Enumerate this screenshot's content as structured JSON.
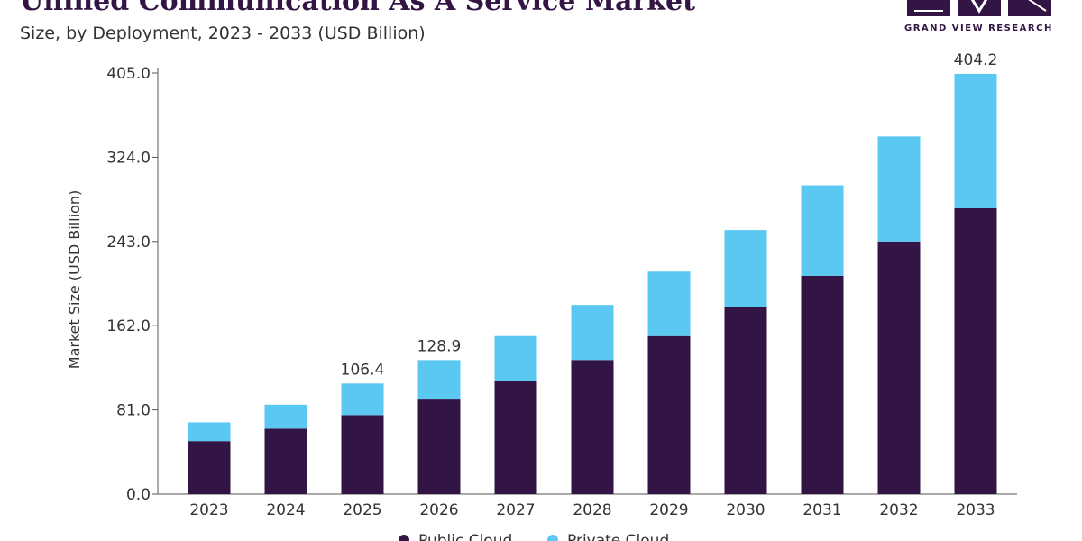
{
  "header": {
    "title": "Unified Communication As A Service Market",
    "subtitle": "Size, by Deployment, 2023 - 2033 (USD Billion)"
  },
  "brand": {
    "name": "GRAND VIEW RESEARCH",
    "logo_icon": "gvr-logo-icon",
    "color": "#321445"
  },
  "chart_data": {
    "type": "bar",
    "stacked": true,
    "categories": [
      "2023",
      "2024",
      "2025",
      "2026",
      "2027",
      "2028",
      "2029",
      "2030",
      "2031",
      "2032",
      "2033"
    ],
    "series": [
      {
        "name": "Public Cloud",
        "color": "#321445",
        "values": [
          51,
          63,
          76,
          91,
          109,
          129,
          152,
          180,
          210,
          243,
          275
        ]
      },
      {
        "name": "Private Cloud",
        "color": "#5BC8F2",
        "values": [
          18,
          23,
          30.4,
          37.9,
          43,
          53,
          62,
          74,
          87,
          101,
          129.2
        ]
      }
    ],
    "data_labels": [
      {
        "category": "2025",
        "text": "106.4"
      },
      {
        "category": "2026",
        "text": "128.9"
      },
      {
        "category": "2033",
        "text": "404.2"
      }
    ],
    "ylabel": "Market Size (USD Billion)",
    "xlabel": "",
    "ylim": [
      0,
      405
    ],
    "yticks": [
      "0.0",
      "81.0",
      "162.0",
      "243.0",
      "324.0",
      "405.0"
    ],
    "legend_position": "bottom-center"
  }
}
